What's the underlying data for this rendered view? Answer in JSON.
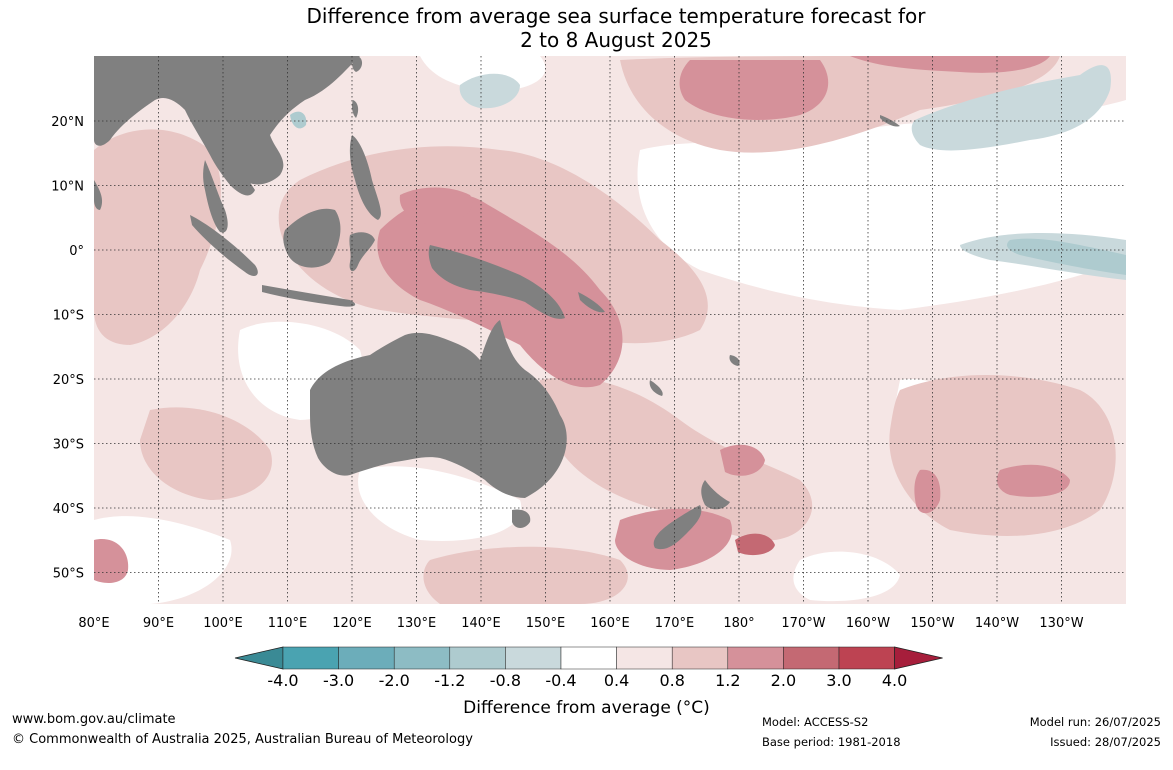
{
  "title": {
    "line1": "Difference from average sea surface temperature forecast for",
    "line2": "2 to 8 August 2025"
  },
  "map": {
    "lat_labels": [
      "20°N",
      "10°N",
      "0°",
      "10°S",
      "20°S",
      "30°S",
      "40°S",
      "50°S"
    ],
    "lon_labels": [
      "80°E",
      "90°E",
      "100°E",
      "110°E",
      "120°E",
      "130°E",
      "140°E",
      "150°E",
      "160°E",
      "170°E",
      "180°",
      "170°W",
      "160°W",
      "150°W",
      "140°W",
      "130°W"
    ],
    "land_color": "#808080",
    "gridlines": "dotted"
  },
  "colorbar": {
    "ticks": [
      "-4.0",
      "-3.0",
      "-2.0",
      "-1.2",
      "-0.8",
      "-0.4",
      "0.4",
      "0.8",
      "1.2",
      "2.0",
      "3.0",
      "4.0"
    ],
    "colors": [
      "#3a8a95",
      "#4aa3b1",
      "#6cadba",
      "#8dbcc4",
      "#aecbcf",
      "#c9d9dc",
      "#ffffff",
      "#f5e6e5",
      "#e8c6c4",
      "#d5919a",
      "#c46973",
      "#bd4352",
      "#a61e3b"
    ],
    "label": "Difference from average (°C)"
  },
  "footer": {
    "website": "www.bom.gov.au/climate",
    "copyright": "© Commonwealth of Australia 2025, Australian Bureau of Meteorology",
    "model": "Model: ACCESS-S2",
    "base_period": "Base period: 1981-2018",
    "model_run": "Model run: 26/07/2025",
    "issued": "Issued: 28/07/2025"
  }
}
